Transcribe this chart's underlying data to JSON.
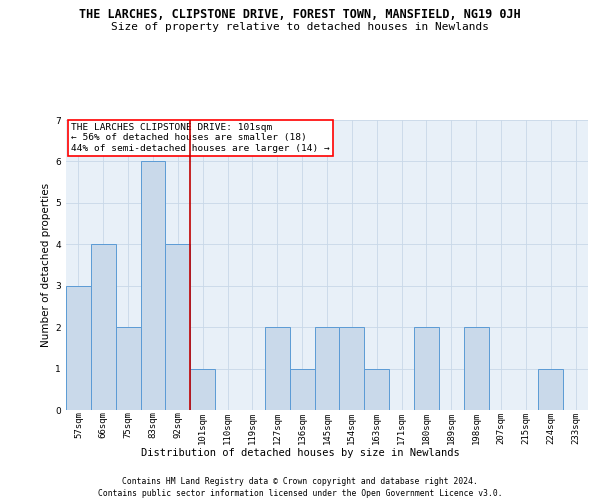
{
  "title": "THE LARCHES, CLIPSTONE DRIVE, FOREST TOWN, MANSFIELD, NG19 0JH",
  "subtitle": "Size of property relative to detached houses in Newlands",
  "xlabel": "Distribution of detached houses by size in Newlands",
  "ylabel": "Number of detached properties",
  "categories": [
    "57sqm",
    "66sqm",
    "75sqm",
    "83sqm",
    "92sqm",
    "101sqm",
    "110sqm",
    "119sqm",
    "127sqm",
    "136sqm",
    "145sqm",
    "154sqm",
    "163sqm",
    "171sqm",
    "180sqm",
    "189sqm",
    "198sqm",
    "207sqm",
    "215sqm",
    "224sqm",
    "233sqm"
  ],
  "values": [
    3,
    4,
    2,
    6,
    4,
    1,
    0,
    0,
    2,
    1,
    2,
    2,
    1,
    0,
    2,
    0,
    2,
    0,
    0,
    1,
    0
  ],
  "highlight_index": 5,
  "bar_color": "#c9d9ea",
  "bar_edge_color": "#5b9bd5",
  "highlight_line_color": "#c00000",
  "ylim": [
    0,
    7
  ],
  "yticks": [
    0,
    1,
    2,
    3,
    4,
    5,
    6,
    7
  ],
  "annotation_title": "THE LARCHES CLIPSTONE DRIVE: 101sqm",
  "annotation_line1": "← 56% of detached houses are smaller (18)",
  "annotation_line2": "44% of semi-detached houses are larger (14) →",
  "footer1": "Contains HM Land Registry data © Crown copyright and database right 2024.",
  "footer2": "Contains public sector information licensed under the Open Government Licence v3.0.",
  "bg_color": "#ffffff",
  "grid_color": "#c8d8e8",
  "title_fontsize": 8.5,
  "subtitle_fontsize": 8.0,
  "axis_label_fontsize": 7.5,
  "tick_fontsize": 6.5,
  "annotation_fontsize": 6.8,
  "footer_fontsize": 5.8
}
